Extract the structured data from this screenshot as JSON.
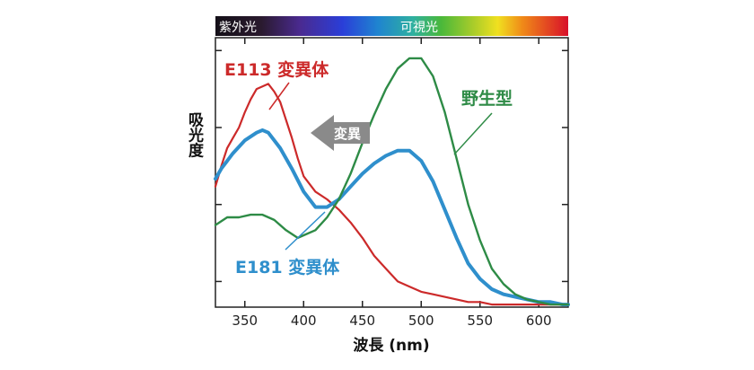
{
  "chart_data": {
    "type": "line",
    "xlabel": "波長 (nm)",
    "ylabel": "吸光度",
    "xlim": [
      325,
      625
    ],
    "ylim": [
      0,
      1.05
    ],
    "x_ticks": [
      350,
      400,
      450,
      500,
      550,
      600
    ],
    "y_axis_tick_labels": "none",
    "grid": false,
    "spectrum_bar": {
      "uv_label": "紫外光",
      "visible_label": "可視光",
      "uv_end_nm": 400
    },
    "arrow_label": "変異",
    "series": [
      {
        "name": "E113 変異体",
        "color": "#cc2a2a",
        "x": [
          325,
          330,
          335,
          340,
          345,
          350,
          355,
          360,
          365,
          370,
          375,
          380,
          385,
          390,
          395,
          400,
          410,
          420,
          430,
          440,
          450,
          460,
          470,
          480,
          490,
          500,
          510,
          520,
          530,
          540,
          550,
          560,
          570,
          580,
          590,
          600,
          610,
          620,
          625
        ],
        "y": [
          0.47,
          0.55,
          0.62,
          0.66,
          0.7,
          0.76,
          0.81,
          0.85,
          0.86,
          0.87,
          0.84,
          0.8,
          0.73,
          0.66,
          0.58,
          0.51,
          0.45,
          0.42,
          0.38,
          0.33,
          0.27,
          0.2,
          0.15,
          0.1,
          0.08,
          0.06,
          0.05,
          0.04,
          0.03,
          0.02,
          0.02,
          0.01,
          0.01,
          0.01,
          0.01,
          0.01,
          0.01,
          0.01,
          0.01
        ]
      },
      {
        "name": "E181 変異体",
        "color": "#2f8fcc",
        "x": [
          325,
          330,
          340,
          350,
          360,
          365,
          370,
          380,
          390,
          400,
          410,
          420,
          430,
          440,
          450,
          460,
          470,
          480,
          485,
          490,
          500,
          510,
          520,
          530,
          540,
          550,
          560,
          570,
          580,
          590,
          600,
          610,
          620,
          625
        ],
        "y": [
          0.5,
          0.54,
          0.6,
          0.65,
          0.68,
          0.69,
          0.68,
          0.62,
          0.54,
          0.45,
          0.39,
          0.39,
          0.42,
          0.47,
          0.52,
          0.56,
          0.59,
          0.61,
          0.61,
          0.61,
          0.57,
          0.49,
          0.38,
          0.27,
          0.17,
          0.11,
          0.07,
          0.05,
          0.04,
          0.03,
          0.02,
          0.02,
          0.01,
          0.01
        ]
      },
      {
        "name": "野生型",
        "color": "#2e8b46",
        "x": [
          325,
          335,
          345,
          355,
          365,
          375,
          385,
          395,
          400,
          410,
          420,
          430,
          440,
          450,
          460,
          470,
          480,
          490,
          500,
          510,
          520,
          530,
          540,
          550,
          560,
          570,
          580,
          590,
          600,
          610,
          620,
          625
        ],
        "y": [
          0.32,
          0.35,
          0.35,
          0.36,
          0.36,
          0.34,
          0.3,
          0.27,
          0.28,
          0.3,
          0.35,
          0.42,
          0.52,
          0.64,
          0.75,
          0.85,
          0.93,
          0.97,
          0.97,
          0.9,
          0.76,
          0.58,
          0.4,
          0.26,
          0.15,
          0.09,
          0.05,
          0.03,
          0.02,
          0.01,
          0.01,
          0.01
        ]
      }
    ]
  }
}
